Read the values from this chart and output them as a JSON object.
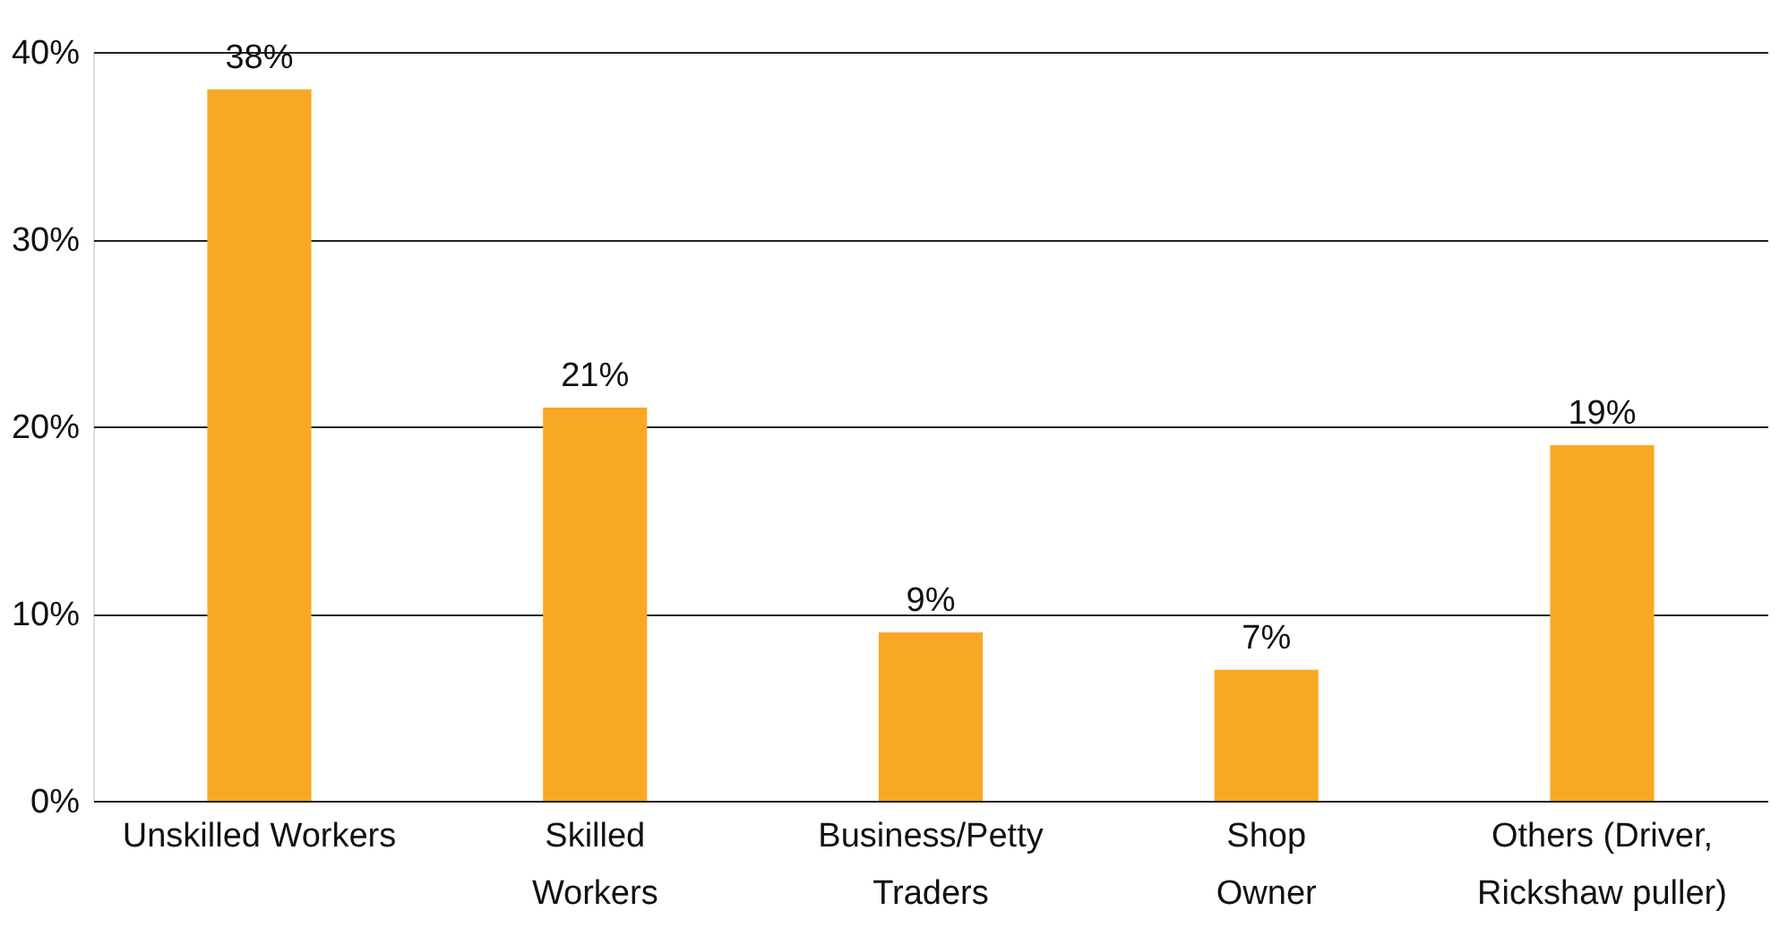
{
  "chart_data": {
    "type": "bar",
    "categories": [
      "Unskilled Workers",
      "Skilled\nWorkers",
      "Business/Petty\nTraders",
      "Shop\nOwner",
      "Others (Driver,\nRickshaw puller)"
    ],
    "values": [
      38,
      21,
      9,
      7,
      19
    ],
    "value_labels": [
      "38%",
      "21%",
      "9%",
      "7%",
      "19%"
    ],
    "color": "#f9a825",
    "ylim": [
      0,
      40
    ],
    "yticks": [
      {
        "value": 0,
        "label": "0%"
      },
      {
        "value": 10,
        "label": "10%"
      },
      {
        "value": 20,
        "label": "20%"
      },
      {
        "value": 30,
        "label": "30%"
      },
      {
        "value": 40,
        "label": "40%"
      }
    ],
    "grid": "y"
  }
}
